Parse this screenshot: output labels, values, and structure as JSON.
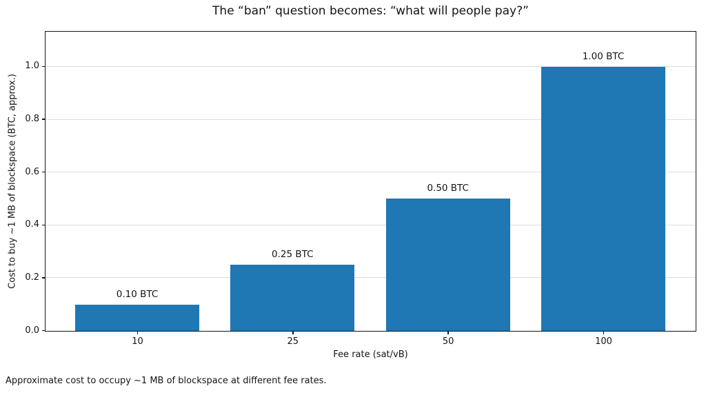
{
  "caption": "Approximate cost to occupy ~1 MB of blockspace at different fee rates.",
  "chart_data": {
    "type": "bar",
    "title": "The “ban” question becomes: “what will people pay?”",
    "categories": [
      "10",
      "25",
      "50",
      "100"
    ],
    "values": [
      0.1,
      0.25,
      0.5,
      1.0
    ],
    "bar_labels": [
      "0.10 BTC",
      "0.25 BTC",
      "0.50 BTC",
      "1.00 BTC"
    ],
    "xlabel": "Fee rate (sat/vB)",
    "ylabel": "Cost to buy ~1 MB of blockspace (BTC, approx.)",
    "ytick_labels": [
      "0.0",
      "0.2",
      "0.4",
      "0.6",
      "0.8",
      "1.0"
    ],
    "ytick_values": [
      0,
      0.2,
      0.4,
      0.6,
      0.8,
      1.0
    ],
    "ylim": [
      0,
      1.13
    ],
    "xlim": [
      -0.59,
      3.59
    ],
    "bar_width": 0.8,
    "grid": "horizontal",
    "legend": "none",
    "bar_color": "#1f77b4",
    "gridline_color": "#dcdcdc"
  }
}
